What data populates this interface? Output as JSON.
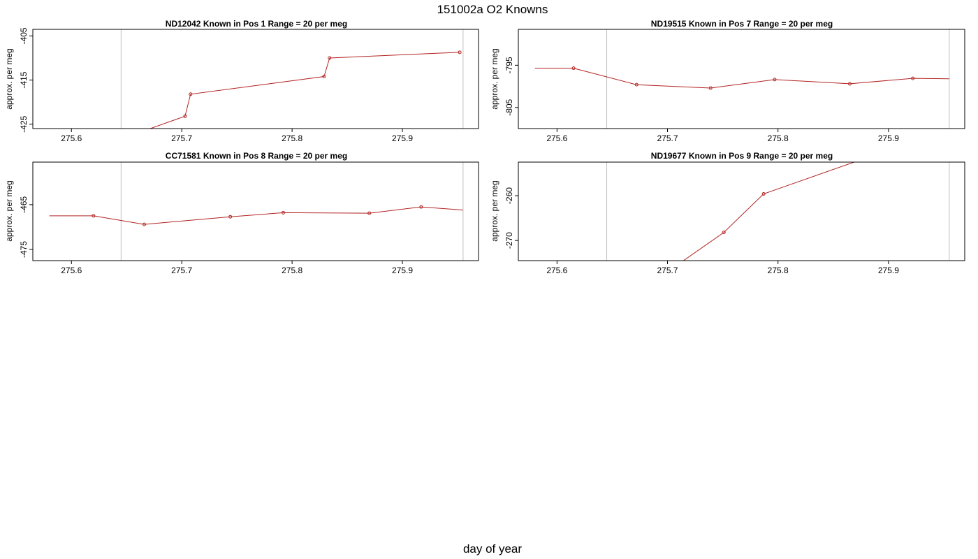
{
  "title": "151002a   O2 Knowns",
  "xlabel": "day of year",
  "colors": {
    "series": "#b22222",
    "frame": "#000000",
    "vline": "#bfbfbf"
  },
  "chart_data": [
    {
      "type": "line",
      "title": "ND12042    Known in Pos 1          Range = 20 per meg",
      "ylabel": "approx. per meg",
      "xlim": [
        275.565,
        275.969
      ],
      "ylim": [
        -426,
        -403.5
      ],
      "xticks": [
        275.6,
        275.7,
        275.8,
        275.9
      ],
      "xtick_labels": [
        "275.6",
        "275.7",
        "275.8",
        "275.9"
      ],
      "yticks": [
        -405,
        -415,
        -425
      ],
      "ytick_labels": [
        "-405",
        "-415",
        "-425"
      ],
      "vlines": [
        275.645,
        275.955
      ],
      "line_start": null,
      "line_end": null,
      "x": [
        275.615,
        275.703,
        275.708,
        275.829,
        275.834,
        275.952
      ],
      "y": [
        -431,
        -423.2,
        -418.2,
        -414.2,
        -410.0,
        -408.7
      ],
      "marker_x": [
        275.703,
        275.708,
        275.829,
        275.834,
        275.952
      ],
      "marker_y": [
        -423.2,
        -418.2,
        -414.2,
        -410.0,
        -408.7
      ]
    },
    {
      "type": "line",
      "title": "ND19515    Known in Pos 7          Range = 20 per meg",
      "ylabel": "approx. per meg",
      "xlim": [
        275.565,
        275.969
      ],
      "ylim": [
        -810,
        -786.5
      ],
      "xticks": [
        275.6,
        275.7,
        275.8,
        275.9
      ],
      "xtick_labels": [
        "275.6",
        "275.7",
        "275.8",
        "275.9"
      ],
      "yticks": [
        -795,
        -805
      ],
      "ytick_labels": [
        "-795",
        "-805"
      ],
      "vlines": [
        275.645,
        275.955
      ],
      "line_start": [
        275.58,
        -795.7
      ],
      "line_end": [
        275.955,
        -798.2
      ],
      "x": [
        275.615,
        275.672,
        275.739,
        275.797,
        275.865,
        275.922
      ],
      "y": [
        -795.7,
        -799.6,
        -800.4,
        -798.4,
        -799.4,
        -798.1
      ],
      "marker_x": [
        275.615,
        275.672,
        275.739,
        275.797,
        275.865,
        275.922
      ],
      "marker_y": [
        -795.7,
        -799.6,
        -800.4,
        -798.4,
        -799.4,
        -798.1
      ]
    },
    {
      "type": "line",
      "title": "CC71581    Known in Pos 8          Range = 20 per meg",
      "ylabel": "approx. per meg",
      "xlim": [
        275.565,
        275.969
      ],
      "ylim": [
        -477.5,
        -455.5
      ],
      "xticks": [
        275.6,
        275.7,
        275.8,
        275.9
      ],
      "xtick_labels": [
        "275.6",
        "275.7",
        "275.8",
        "275.9"
      ],
      "yticks": [
        -465,
        -475
      ],
      "ytick_labels": [
        "-465",
        "-475"
      ],
      "vlines": [
        275.645,
        275.955
      ],
      "line_start": [
        275.58,
        -467.5
      ],
      "line_end": [
        275.955,
        -466.2
      ],
      "x": [
        275.62,
        275.666,
        275.744,
        275.792,
        275.87,
        275.917
      ],
      "y": [
        -467.5,
        -469.4,
        -467.7,
        -466.8,
        -466.9,
        -465.5
      ],
      "marker_x": [
        275.62,
        275.666,
        275.744,
        275.792,
        275.87,
        275.917
      ],
      "marker_y": [
        -467.5,
        -469.4,
        -467.7,
        -466.8,
        -466.9,
        -465.5
      ]
    },
    {
      "type": "line",
      "title": "ND19677    Known in Pos 9          Range = 20 per meg",
      "ylabel": "approx. per meg",
      "xlim": [
        275.565,
        275.969
      ],
      "ylim": [
        -274.5,
        -252.5
      ],
      "xticks": [
        275.6,
        275.7,
        275.8,
        275.9
      ],
      "xtick_labels": [
        "275.6",
        "275.7",
        "275.8",
        "275.9"
      ],
      "yticks": [
        -260,
        -270
      ],
      "ytick_labels": [
        "-260",
        "-270"
      ],
      "vlines": [
        275.645,
        275.955
      ],
      "line_start": null,
      "line_end": null,
      "x": [
        275.7,
        275.751,
        275.787,
        275.87
      ],
      "y": [
        -277,
        -268.2,
        -259.6,
        -252.4
      ],
      "marker_x": [
        275.751,
        275.787
      ],
      "marker_y": [
        -268.2,
        -259.6
      ]
    }
  ]
}
